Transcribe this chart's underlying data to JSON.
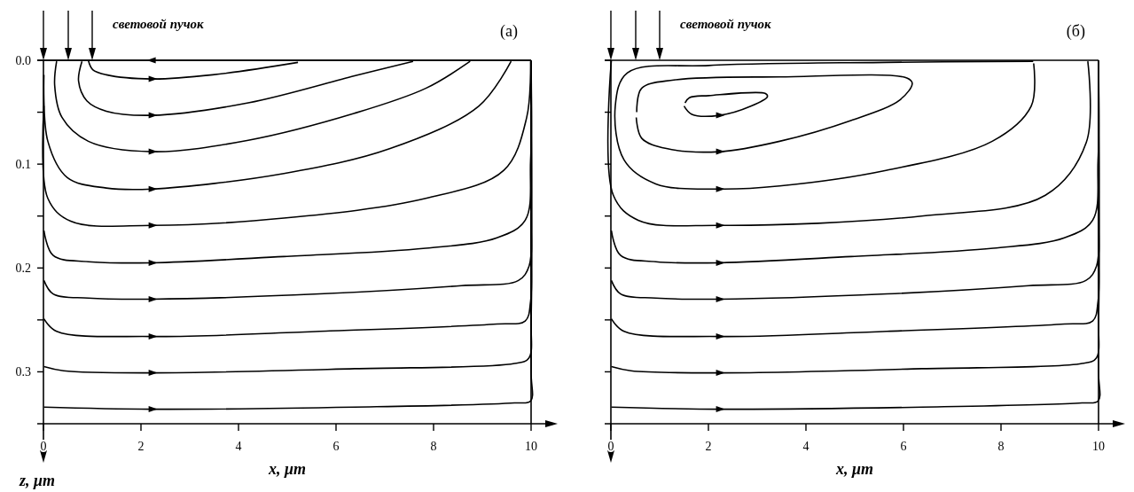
{
  "chart_data": [
    {
      "type": "line",
      "title": "(a)",
      "annotations": [
        "световой пучок"
      ],
      "xlabel": "x, μm",
      "ylabel": "z, μm",
      "xlim": [
        0,
        10
      ],
      "ylim": [
        0.35,
        0
      ],
      "xticks": [
        0,
        2,
        4,
        6,
        8,
        10
      ],
      "yticks": [
        {
          "value": 0,
          "label": "0.0"
        },
        {
          "value": 0.05,
          "label": null
        },
        0.1,
        {
          "value": 0.15,
          "label": null
        },
        0.2,
        {
          "value": 0.25,
          "label": null
        },
        0.3
      ],
      "grid": false,
      "marker": "none",
      "line_style": "solid",
      "series": [
        {
          "color": "#000000",
          "x": [
            10,
            2.23,
            0
          ],
          "values": [
            0,
            0,
            0
          ]
        },
        {
          "color": "#000000",
          "x": [
            0.92,
            1.01,
            1.29,
            2.23,
            3.47,
            5.22
          ],
          "values": [
            0,
            0.009,
            0.014,
            0.018,
            0.014,
            0.002
          ]
        },
        {
          "color": "#000000",
          "x": [
            0.79,
            0.72,
            0.89,
            1.29,
            2.23,
            4.2,
            6.38,
            7.58
          ],
          "values": [
            0.001,
            0.02,
            0.039,
            0.049,
            0.053,
            0.041,
            0.015,
            0.001
          ]
        },
        {
          "color": "#000000",
          "x": [
            0.27,
            0.23,
            0.38,
            0.92,
            2.23,
            4.2,
            6.38,
            7.84,
            8.75
          ],
          "values": [
            0.001,
            0.024,
            0.055,
            0.078,
            0.088,
            0.077,
            0.051,
            0.027,
            0.001
          ]
        },
        {
          "color": "#000000",
          "x": [
            0.01,
            0.09,
            0.49,
            1.29,
            2.23,
            4.93,
            7.11,
            8.93,
            9.59
          ],
          "values": [
            0.014,
            0.078,
            0.113,
            0.123,
            0.124,
            0.109,
            0.085,
            0.044,
            0.001
          ]
        },
        {
          "color": "#000000",
          "x": [
            0.01,
            0.09,
            0.56,
            2.23,
            4.93,
            7.84,
            9.44,
            9.91,
            9.99
          ],
          "values": [
            0.044,
            0.133,
            0.155,
            0.159,
            0.152,
            0.133,
            0.106,
            0.055,
            0.001
          ]
        },
        {
          "color": "#000000",
          "x": [
            0.01,
            0.2,
            0.92,
            2.23,
            4.93,
            7.84,
            9.3,
            9.88,
            9.99,
            10
          ],
          "values": [
            0.164,
            0.188,
            0.194,
            0.195,
            0.189,
            0.181,
            0.171,
            0.154,
            0.096,
            0
          ]
        },
        {
          "color": "#000000",
          "x": [
            0.01,
            0.2,
            0.92,
            2.23,
            5.66,
            8.57,
            9.74,
            9.96,
            10,
            10
          ],
          "values": [
            0.212,
            0.225,
            0.229,
            0.23,
            0.225,
            0.217,
            0.212,
            0.198,
            0.147,
            0
          ]
        },
        {
          "color": "#000000",
          "x": [
            0.01,
            0.27,
            2.23,
            5.66,
            9.3,
            9.88,
            9.99,
            10,
            10
          ],
          "values": [
            0.249,
            0.261,
            0.266,
            0.261,
            0.254,
            0.251,
            0.232,
            0.181,
            0
          ]
        },
        {
          "color": "#000000",
          "x": [
            0.01,
            0.41,
            2.23,
            6.38,
            9.66,
            9.95,
            10,
            10
          ],
          "values": [
            0.295,
            0.299,
            0.301,
            0.297,
            0.292,
            0.287,
            0.249,
            0
          ]
        },
        {
          "color": "#000000",
          "x": [
            0.01,
            2.23,
            6.38,
            9.66,
            9.99,
            10,
            10
          ],
          "values": [
            0.334,
            0.336,
            0.334,
            0.33,
            0.328,
            0.3,
            0
          ]
        }
      ]
    },
    {
      "type": "line",
      "title": "(б)",
      "annotations": [
        "световой пучок"
      ],
      "xlabel": "x, μm",
      "xlim": [
        0,
        10
      ],
      "ylim": [
        0.35,
        0
      ],
      "xticks": [
        0,
        2,
        4,
        6,
        8,
        10
      ],
      "yticks": [
        {
          "value": 0,
          "label": null
        },
        {
          "value": 0.05,
          "label": null
        },
        {
          "value": 0.1,
          "label": null
        },
        {
          "value": 0.15,
          "label": null
        },
        {
          "value": 0.2,
          "label": null
        },
        {
          "value": 0.25,
          "label": null
        },
        {
          "value": 0.3,
          "label": null
        }
      ],
      "tick_labels": "x",
      "grid": false,
      "marker": "none",
      "line_style": "solid",
      "series": [
        {
          "color": "#000000",
          "x": [
            1.5,
            1.66,
            2.23,
            2.88,
            3.21,
            3.17,
            2.01,
            1.61,
            1.52
          ],
          "values": [
            0.044,
            0.052,
            0.053,
            0.044,
            0.035,
            0.032,
            0.034,
            0.036,
            0.041
          ]
        },
        {
          "color": "#000000",
          "x": [
            0.52,
            0.63,
            1.14,
            2.23,
            3.46,
            4.92,
            5.93,
            6.18,
            6.07,
            3.46,
            1.29,
            0.63,
            0.53
          ],
          "values": [
            0.055,
            0.075,
            0.085,
            0.088,
            0.078,
            0.058,
            0.038,
            0.022,
            0.017,
            0.016,
            0.019,
            0.027,
            0.05
          ]
        },
        {
          "color": "#000000",
          "x": [
            8.66,
            5.64,
            2.01,
            0.34,
            0.09,
            0.27,
            0.92,
            2.23,
            3.46,
            5.64,
            7.82,
            8.62,
            8.67
          ],
          "values": [
            0.001,
            0.002,
            0.005,
            0.012,
            0.044,
            0.096,
            0.119,
            0.124,
            0.121,
            0.106,
            0.078,
            0.044,
            0.003
          ]
        },
        {
          "color": "#000000",
          "x": [
            0.01,
            0.05,
            0.56,
            2.23,
            6.37,
            8.91,
            9.75,
            9.78
          ],
          "values": [
            0,
            0.13,
            0.154,
            0.159,
            0.15,
            0.13,
            0.079,
            0.001
          ]
        },
        {
          "color": "#000000",
          "x": [
            0.01,
            0.2,
            0.92,
            2.23,
            4.93,
            7.84,
            9.3,
            9.88,
            9.99,
            10
          ],
          "values": [
            0.164,
            0.188,
            0.194,
            0.195,
            0.189,
            0.181,
            0.171,
            0.154,
            0.096,
            0
          ]
        },
        {
          "color": "#000000",
          "x": [
            0.01,
            0.2,
            0.92,
            2.23,
            5.66,
            8.57,
            9.74,
            9.96,
            10,
            10
          ],
          "values": [
            0.212,
            0.225,
            0.229,
            0.23,
            0.225,
            0.217,
            0.212,
            0.198,
            0.147,
            0
          ]
        },
        {
          "color": "#000000",
          "x": [
            0.01,
            0.27,
            2.23,
            5.66,
            9.3,
            9.88,
            9.99,
            10,
            10
          ],
          "values": [
            0.249,
            0.261,
            0.266,
            0.261,
            0.254,
            0.251,
            0.232,
            0.181,
            0
          ]
        },
        {
          "color": "#000000",
          "x": [
            0.01,
            0.41,
            2.23,
            6.38,
            9.66,
            9.95,
            10,
            10
          ],
          "values": [
            0.295,
            0.299,
            0.301,
            0.297,
            0.292,
            0.287,
            0.249,
            0
          ]
        },
        {
          "color": "#000000",
          "x": [
            0.01,
            2.23,
            6.38,
            9.66,
            9.99,
            10,
            10
          ],
          "values": [
            0.334,
            0.336,
            0.334,
            0.33,
            0.328,
            0.3,
            0
          ]
        }
      ]
    }
  ]
}
